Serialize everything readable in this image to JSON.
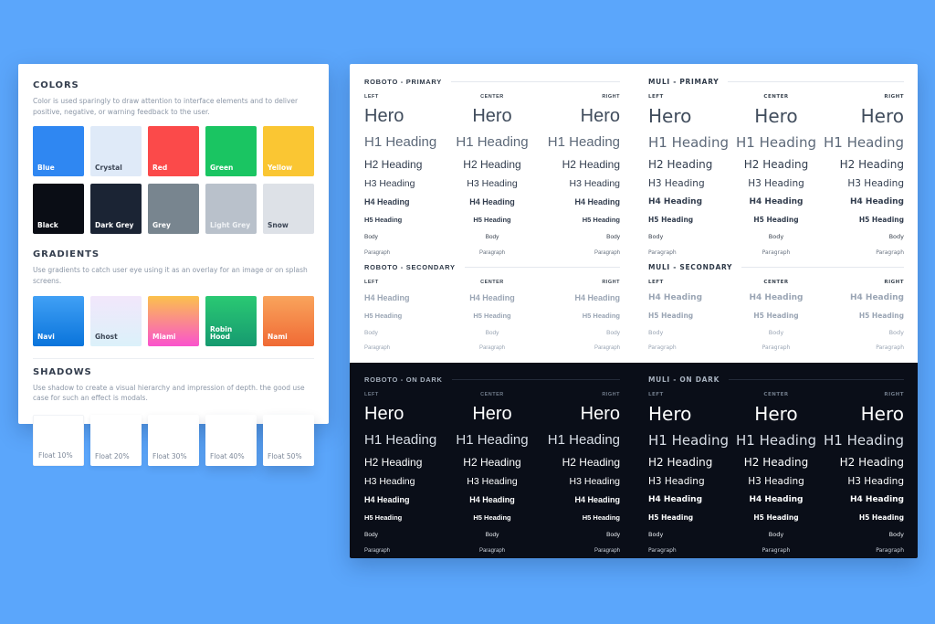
{
  "page": {
    "background": "#5BA6FB",
    "dark_background": "#0A0E18"
  },
  "colors_panel": {
    "colors": {
      "title": "COLORS",
      "description": "Color is used sparingly to draw attention to interface elements and to deliver positive, negative, or warning feedback to the user.",
      "swatches": [
        {
          "name": "Blue",
          "color": "#2F87F2",
          "text": "#FFFFFF"
        },
        {
          "name": "Crystal",
          "color": "#DFEAF8",
          "text": "#3C4656"
        },
        {
          "name": "Red",
          "color": "#FB4A4A",
          "text": "#FFFFFF"
        },
        {
          "name": "Green",
          "color": "#1AC562",
          "text": "#FFFFFF"
        },
        {
          "name": "Yellow",
          "color": "#FAC633",
          "text": "#FFFFFF"
        },
        {
          "name": "Black",
          "color": "#0A0D15",
          "text": "#FFFFFF"
        },
        {
          "name": "Dark Grey",
          "color": "#1B2434",
          "text": "#FFFFFF"
        },
        {
          "name": "Grey",
          "color": "#78858F",
          "text": "#FFFFFF"
        },
        {
          "name": "Light Grey",
          "color": "#B9C1CB",
          "text": "#EFF2F5"
        },
        {
          "name": "Snow",
          "color": "#DDE1E7",
          "text": "#3C4656"
        }
      ]
    },
    "gradients": {
      "title": "GRADIENTS",
      "description": "Use gradients to catch user eye using it as an overlay for an image or on splash screens.",
      "swatches": [
        {
          "name": "Navi",
          "from": "#41A0F5",
          "to": "#0A74DB",
          "text": "#FFFFFF"
        },
        {
          "name": "Ghost",
          "from": "#F2E7FB",
          "to": "#DBF1FA",
          "text": "#3C4656"
        },
        {
          "name": "Miami",
          "from": "#FBC14C",
          "to": "#FA53CE",
          "text": "#FFFFFF"
        },
        {
          "name": "Robin Hood",
          "from": "#2AC973",
          "to": "#169A70",
          "text": "#FFFFFF"
        },
        {
          "name": "Nami",
          "from": "#F9A45C",
          "to": "#F06A35",
          "text": "#FFFFFF"
        }
      ]
    },
    "shadows": {
      "title": "SHADOWS",
      "description": "Use shadow to create a visual hierarchy and impression of depth. the good use case for such an effect is modals.",
      "cards": [
        {
          "label": "Float 10%"
        },
        {
          "label": "Float 20%"
        },
        {
          "label": "Float 30%"
        },
        {
          "label": "Float 40%"
        },
        {
          "label": "Float 50%"
        }
      ]
    }
  },
  "typography_panel": {
    "column_headers": [
      "LEFT",
      "CENTER",
      "RIGHT"
    ],
    "sections": [
      {
        "id": "roboto-primary",
        "title": "ROBOTO - PRIMARY",
        "font": "roboto",
        "variant": "primary",
        "theme": "light",
        "rows": [
          "Hero",
          "H1 Heading",
          "H2 Heading",
          "H3 Heading",
          "H4 Heading",
          "H5 Heading",
          "Body",
          "Paragraph"
        ]
      },
      {
        "id": "muli-primary",
        "title": "MULI - PRIMARY",
        "font": "muli",
        "variant": "primary",
        "theme": "light",
        "rows": [
          "Hero",
          "H1 Heading",
          "H2 Heading",
          "H3 Heading",
          "H4 Heading",
          "H5 Heading",
          "Body",
          "Paragraph"
        ]
      },
      {
        "id": "roboto-secondary",
        "title": "ROBOTO - SECONDARY",
        "font": "roboto",
        "variant": "secondary",
        "theme": "light",
        "rows": [
          "H4 Heading",
          "H5 Heading",
          "Body",
          "Paragraph"
        ]
      },
      {
        "id": "muli-secondary",
        "title": "MULI - SECONDARY",
        "font": "muli",
        "variant": "secondary",
        "theme": "light",
        "rows": [
          "H4 Heading",
          "H5 Heading",
          "Body",
          "Paragraph"
        ]
      },
      {
        "id": "roboto-on-dark",
        "title": "ROBOTO - ON DARK",
        "font": "roboto",
        "variant": "primary",
        "theme": "dark",
        "rows": [
          "Hero",
          "H1 Heading",
          "H2 Heading",
          "H3 Heading",
          "H4 Heading",
          "H5 Heading",
          "Body",
          "Paragraph"
        ]
      },
      {
        "id": "muli-on-dark",
        "title": "MULI - ON DARK",
        "font": "muli",
        "variant": "primary",
        "theme": "dark",
        "rows": [
          "Hero",
          "H1 Heading",
          "H2 Heading",
          "H3 Heading",
          "H4 Heading",
          "H5 Heading",
          "Body",
          "Paragraph"
        ]
      }
    ]
  }
}
